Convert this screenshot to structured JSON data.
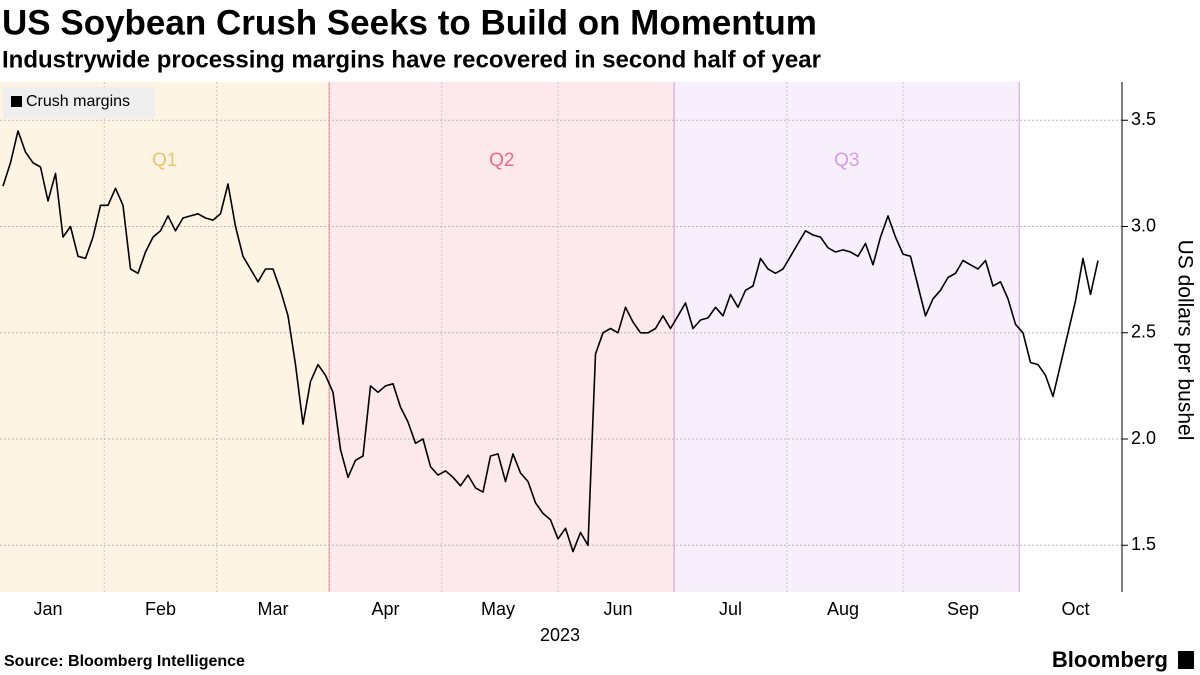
{
  "chart_data": {
    "type": "line",
    "title": "US Soybean Crush Seeks to Build on Momentum",
    "subtitle": "Industrywide processing margins have recovered in second half of year",
    "x_label": "2023",
    "y_label": "US dollars per bushel",
    "source": "Source: Bloomberg Intelligence",
    "logo": "Bloomberg",
    "legend": "top-left",
    "grid": true,
    "ylim": [
      1.28,
      3.68
    ],
    "yticks": [
      1.5,
      {
        "value": 2,
        "label": "2.0"
      },
      2.5,
      {
        "value": 3,
        "label": "3.0"
      },
      3.5
    ],
    "regions": [
      {
        "label": "Q1",
        "from": "Jan",
        "to": "Mar",
        "color": "#f5c06a",
        "fill": "#fdf4e4"
      },
      {
        "label": "Q2",
        "from": "Apr",
        "to": "Jun",
        "color": "#ef6b86",
        "fill": "#fde8eb"
      },
      {
        "label": "Q3",
        "from": "Jul",
        "to": "Sep",
        "color": "#d79ce8",
        "fill": "#f8effd"
      }
    ],
    "categories": [
      null,
      null,
      null,
      null,
      null,
      null,
      "Jan",
      null,
      null,
      null,
      null,
      null,
      null,
      null,
      null,
      null,
      null,
      null,
      null,
      null,
      null,
      "Feb",
      null,
      null,
      null,
      null,
      null,
      null,
      null,
      null,
      null,
      null,
      null,
      null,
      null,
      null,
      "Mar",
      null,
      null,
      null,
      null,
      null,
      null,
      null,
      null,
      null,
      null,
      null,
      null,
      null,
      null,
      "Apr",
      null,
      null,
      null,
      null,
      null,
      null,
      null,
      null,
      null,
      null,
      null,
      null,
      null,
      null,
      "May",
      null,
      null,
      null,
      null,
      null,
      null,
      null,
      null,
      null,
      null,
      null,
      null,
      null,
      null,
      null,
      "Jun",
      null,
      null,
      null,
      null,
      null,
      null,
      null,
      null,
      null,
      null,
      null,
      null,
      null,
      null,
      "Jul",
      null,
      null,
      null,
      null,
      null,
      null,
      null,
      null,
      null,
      null,
      null,
      null,
      null,
      null,
      "Aug",
      null,
      null,
      null,
      null,
      null,
      null,
      null,
      null,
      null,
      null,
      null,
      null,
      null,
      null,
      null,
      "Sep",
      null,
      null,
      null,
      null,
      null,
      null,
      null,
      null,
      null,
      null,
      null,
      null,
      null,
      null,
      "Oct",
      null,
      null,
      null
    ],
    "series": [
      {
        "name": "Crush margins",
        "color": "#000000",
        "values": [
          3.19,
          3.3,
          3.45,
          3.35,
          3.3,
          3.28,
          3.12,
          3.25,
          2.95,
          3.0,
          2.86,
          2.85,
          2.95,
          3.1,
          3.1,
          3.18,
          3.1,
          2.8,
          2.78,
          2.88,
          2.95,
          2.98,
          3.05,
          2.98,
          3.04,
          3.05,
          3.06,
          3.04,
          3.03,
          3.06,
          3.2,
          3.0,
          2.86,
          2.8,
          2.74,
          2.8,
          2.8,
          2.7,
          2.58,
          2.35,
          2.07,
          2.27,
          2.35,
          2.3,
          2.22,
          1.95,
          1.82,
          1.9,
          1.92,
          2.25,
          2.22,
          2.25,
          2.26,
          2.15,
          2.08,
          1.98,
          2.0,
          1.87,
          1.83,
          1.85,
          1.82,
          1.78,
          1.83,
          1.77,
          1.75,
          1.92,
          1.93,
          1.8,
          1.93,
          1.84,
          1.8,
          1.7,
          1.65,
          1.62,
          1.53,
          1.58,
          1.47,
          1.56,
          1.5,
          2.4,
          2.5,
          2.52,
          2.5,
          2.62,
          2.55,
          2.5,
          2.5,
          2.52,
          2.58,
          2.52,
          2.58,
          2.64,
          2.52,
          2.56,
          2.57,
          2.62,
          2.58,
          2.68,
          2.62,
          2.7,
          2.72,
          2.85,
          2.8,
          2.78,
          2.8,
          2.86,
          2.92,
          2.98,
          2.96,
          2.95,
          2.9,
          2.88,
          2.89,
          2.88,
          2.86,
          2.92,
          2.82,
          2.95,
          3.05,
          2.95,
          2.87,
          2.86,
          2.72,
          2.58,
          2.66,
          2.7,
          2.76,
          2.78,
          2.84,
          2.82,
          2.8,
          2.84,
          2.72,
          2.74,
          2.66,
          2.54,
          2.5,
          2.36,
          2.35,
          2.3,
          2.2,
          2.35,
          2.5,
          2.65,
          2.85,
          2.68,
          2.84
        ]
      }
    ]
  }
}
